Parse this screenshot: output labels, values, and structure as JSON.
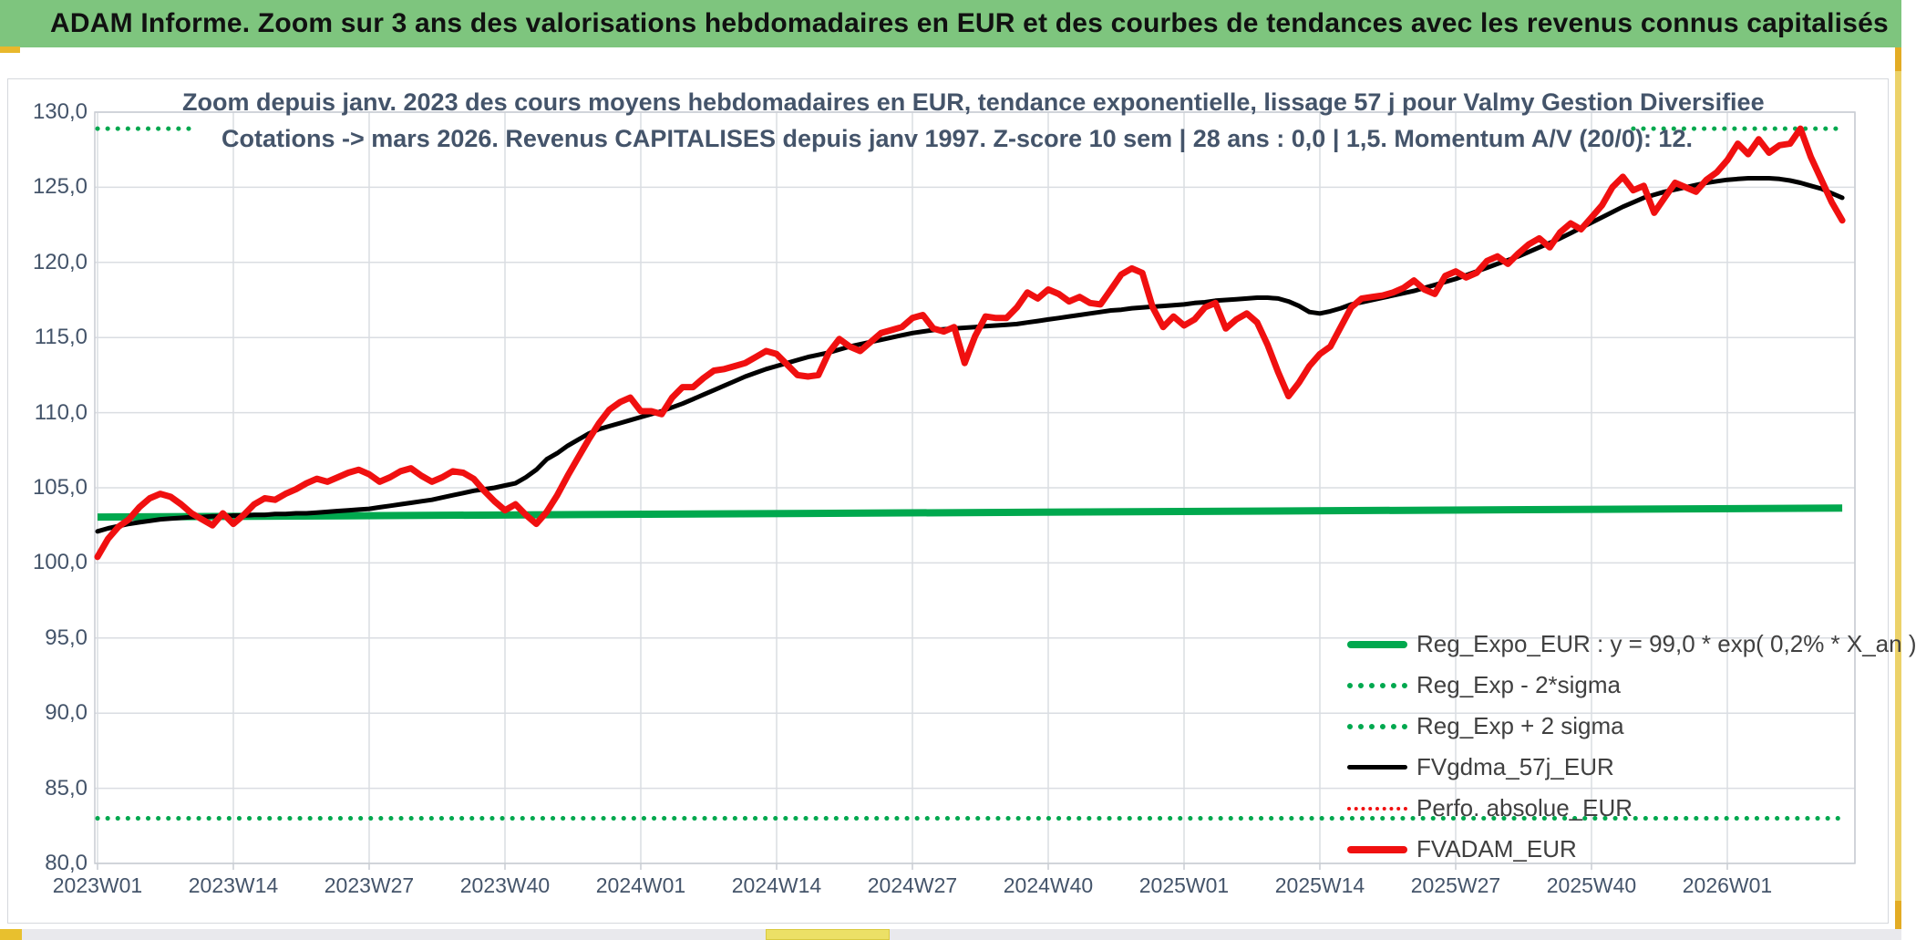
{
  "header": {
    "title": "ADAM Informe. Zoom sur 3 ans des valorisations hebdomadaires en EUR et des courbes de tendances avec les revenus connus capitalisés"
  },
  "colors": {
    "header_bg": "#7ec57e",
    "accent_yellow": "#e8b82c",
    "title_text": "#44546a",
    "axis_text": "#44546a",
    "legend_text": "#404040",
    "grid": "#dadde2",
    "plot_border": "#c8ccd2",
    "red": "#f01010",
    "green": "#00a84e",
    "black": "#000000"
  },
  "chart_data": {
    "type": "line",
    "title_line1": "Zoom depuis janv. 2023 des cours moyens hebdomadaires en EUR, tendance exponentielle, lissage 57 j pour Valmy Gestion Diversifiee",
    "title_line2": "Cotations -> mars 2026. Revenus CAPITALISES depuis janv 1997. Z-score 10 sem | 28 ans : 0,0 | 1,5. Momentum A/V (20/0): 12.",
    "xlabel": "",
    "ylabel": "",
    "ylim": [
      80,
      130
    ],
    "grid": true,
    "legend_position": "bottom-right-inside",
    "x_tick_labels": [
      "2023W01",
      "2023W14",
      "2023W27",
      "2023W40",
      "2024W01",
      "2024W14",
      "2024W27",
      "2024W40",
      "2025W01",
      "2025W14",
      "2025W27",
      "2025W40",
      "2026W01"
    ],
    "x_tick_weeks": [
      0,
      13,
      26,
      39,
      52,
      65,
      78,
      91,
      104,
      117,
      130,
      143,
      156
    ],
    "weeks_total": 168,
    "y_ticks": [
      {
        "value": 130,
        "label": "130,0"
      },
      {
        "value": 125,
        "label": "125,0"
      },
      {
        "value": 120,
        "label": "120,0"
      },
      {
        "value": 115,
        "label": "115,0"
      },
      {
        "value": 110,
        "label": "110,0"
      },
      {
        "value": 105,
        "label": "105,0"
      },
      {
        "value": 100,
        "label": "100,0"
      },
      {
        "value": 95,
        "label": "95,0"
      },
      {
        "value": 90,
        "label": "90,0"
      },
      {
        "value": 85,
        "label": "85,0"
      },
      {
        "value": 80,
        "label": "80,0"
      }
    ],
    "series": [
      {
        "name": "Reg_Expo_EUR",
        "kind": "trend",
        "color": "#00a84e",
        "width": 8,
        "start_value": 103.05,
        "end_value": 103.65
      },
      {
        "name": "Reg_Exp - 2*sigma",
        "kind": "band",
        "color": "#00a84e",
        "dotted": true,
        "width": 5,
        "value": 83.0,
        "segments": [
          [
            0,
            167
          ]
        ]
      },
      {
        "name": "Reg_Exp + 2 sigma",
        "kind": "band",
        "color": "#00a84e",
        "dotted": true,
        "width": 5,
        "value": 128.9,
        "segments": [
          [
            0,
            9
          ],
          [
            147,
            167
          ]
        ]
      },
      {
        "name": "FVgdma_57j_EUR",
        "kind": "line",
        "color": "#000000",
        "width": 5,
        "values": [
          102.1,
          102.3,
          102.45,
          102.6,
          102.7,
          102.8,
          102.9,
          102.95,
          103.0,
          103.05,
          103.05,
          103.1,
          103.1,
          103.15,
          103.15,
          103.2,
          103.2,
          103.25,
          103.25,
          103.3,
          103.3,
          103.35,
          103.4,
          103.45,
          103.5,
          103.55,
          103.6,
          103.7,
          103.8,
          103.9,
          104.0,
          104.1,
          104.2,
          104.35,
          104.5,
          104.65,
          104.8,
          104.9,
          105.0,
          105.15,
          105.3,
          105.7,
          106.2,
          106.9,
          107.3,
          107.8,
          108.2,
          108.6,
          108.9,
          109.1,
          109.3,
          109.5,
          109.7,
          109.9,
          110.1,
          110.35,
          110.6,
          110.9,
          111.2,
          111.5,
          111.8,
          112.1,
          112.4,
          112.65,
          112.9,
          113.1,
          113.3,
          113.5,
          113.7,
          113.85,
          114.0,
          114.2,
          114.4,
          114.55,
          114.7,
          114.85,
          115.0,
          115.15,
          115.3,
          115.4,
          115.5,
          115.55,
          115.6,
          115.65,
          115.7,
          115.75,
          115.8,
          115.85,
          115.9,
          116.0,
          116.1,
          116.2,
          116.3,
          116.4,
          116.5,
          116.6,
          116.7,
          116.8,
          116.85,
          116.95,
          117.0,
          117.05,
          117.1,
          117.15,
          117.2,
          117.3,
          117.35,
          117.45,
          117.5,
          117.55,
          117.6,
          117.65,
          117.65,
          117.6,
          117.4,
          117.1,
          116.7,
          116.6,
          116.75,
          116.95,
          117.2,
          117.35,
          117.5,
          117.65,
          117.8,
          117.95,
          118.1,
          118.3,
          118.5,
          118.7,
          118.9,
          119.15,
          119.4,
          119.65,
          119.9,
          120.15,
          120.4,
          120.7,
          121.0,
          121.3,
          121.6,
          121.95,
          122.3,
          122.65,
          123.0,
          123.35,
          123.7,
          124.0,
          124.3,
          124.5,
          124.7,
          124.85,
          125.0,
          125.15,
          125.3,
          125.4,
          125.5,
          125.55,
          125.6,
          125.6,
          125.6,
          125.55,
          125.45,
          125.3,
          125.1,
          124.9,
          124.6,
          124.3
        ]
      },
      {
        "name": "Perfo. absolue_EUR",
        "kind": "overlay",
        "color": "#f01010",
        "dotted": true,
        "width": 4,
        "note": "overlays FVADAM_EUR exactly, not separately visible"
      },
      {
        "name": "FVADAM_EUR",
        "kind": "line",
        "color": "#f01010",
        "width": 7,
        "values": [
          100.4,
          101.6,
          102.4,
          102.9,
          103.7,
          104.3,
          104.6,
          104.4,
          103.9,
          103.3,
          102.9,
          102.5,
          103.3,
          102.6,
          103.2,
          103.9,
          104.3,
          104.2,
          104.6,
          104.9,
          105.3,
          105.6,
          105.4,
          105.7,
          106.0,
          106.2,
          105.9,
          105.4,
          105.7,
          106.1,
          106.3,
          105.8,
          105.4,
          105.7,
          106.1,
          106.0,
          105.6,
          104.8,
          104.1,
          103.5,
          103.9,
          103.2,
          102.6,
          103.4,
          104.5,
          105.8,
          107.0,
          108.2,
          109.3,
          110.2,
          110.7,
          111.0,
          110.1,
          110.1,
          109.9,
          111.0,
          111.7,
          111.7,
          112.3,
          112.8,
          112.9,
          113.1,
          113.3,
          113.7,
          114.1,
          113.9,
          113.2,
          112.5,
          112.4,
          112.5,
          114.0,
          114.9,
          114.4,
          114.1,
          114.7,
          115.3,
          115.5,
          115.7,
          116.3,
          116.5,
          115.6,
          115.4,
          115.7,
          113.3,
          115.1,
          116.4,
          116.3,
          116.3,
          117.0,
          118.0,
          117.6,
          118.2,
          117.9,
          117.4,
          117.7,
          117.3,
          117.2,
          118.2,
          119.2,
          119.6,
          119.3,
          117.0,
          115.7,
          116.4,
          115.8,
          116.2,
          117.0,
          117.3,
          115.6,
          116.2,
          116.6,
          116.0,
          114.5,
          112.7,
          111.1,
          112.0,
          113.1,
          113.9,
          114.4,
          115.7,
          117.0,
          117.6,
          117.7,
          117.8,
          118.0,
          118.3,
          118.8,
          118.2,
          117.9,
          119.1,
          119.4,
          119.0,
          119.3,
          120.1,
          120.4,
          119.9,
          120.6,
          121.2,
          121.6,
          121.0,
          122.0,
          122.6,
          122.2,
          123.0,
          123.8,
          125.0,
          125.7,
          124.8,
          125.1,
          123.3,
          124.3,
          125.3,
          125.0,
          124.7,
          125.5,
          126.0,
          126.8,
          127.9,
          127.2,
          128.2,
          127.3,
          127.8,
          127.9,
          128.9,
          127.0,
          125.5,
          124.0,
          122.8
        ]
      }
    ],
    "legend": [
      {
        "label": "Reg_Expo_EUR : y = 99,0 * exp( 0,2% *  X_an )",
        "color": "#00a84e",
        "style": "solid",
        "weight": 8
      },
      {
        "label": "Reg_Exp - 2*sigma",
        "color": "#00a84e",
        "style": "dotted",
        "weight": 6
      },
      {
        "label": "Reg_Exp + 2 sigma",
        "color": "#00a84e",
        "style": "dotted",
        "weight": 6
      },
      {
        "label": "FVgdma_57j_EUR",
        "color": "#000000",
        "style": "solid",
        "weight": 5
      },
      {
        "label": "Perfo. absolue_EUR",
        "color": "#f01010",
        "style": "dotted",
        "weight": 4
      },
      {
        "label": "FVADAM_EUR",
        "color": "#f01010",
        "style": "solid",
        "weight": 8
      }
    ]
  }
}
